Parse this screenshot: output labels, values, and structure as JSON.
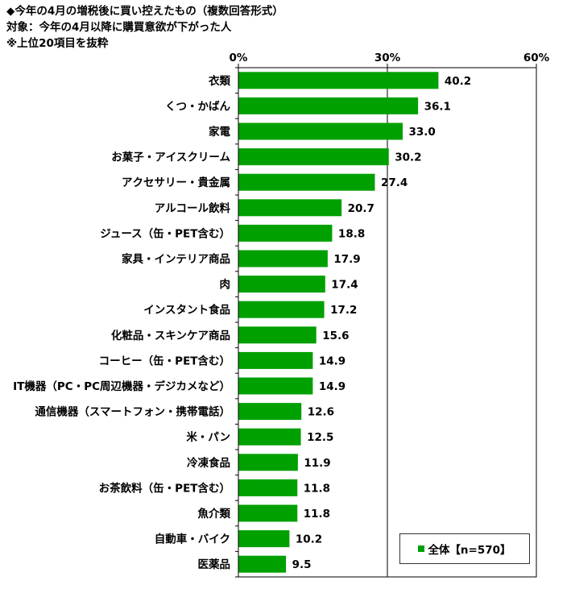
{
  "header": {
    "title": "◆今年の4月の増税後に買い控えたもの（複数回答形式）",
    "subtitle": "対象：今年の4月以降に購買意欲が下がった人",
    "note": "※上位20項目を抜粋"
  },
  "colors": {
    "bar": "#00A000",
    "axis": "#000000",
    "grid": "#000000"
  },
  "chart_data": {
    "type": "bar",
    "orientation": "horizontal",
    "categories": [
      "衣類",
      "くつ・かばん",
      "家電",
      "お菓子・アイスクリーム",
      "アクセサリー・貴金属",
      "アルコール飲料",
      "ジュース（缶・PET含む）",
      "家具・インテリア商品",
      "肉",
      "インスタント食品",
      "化粧品・スキンケア商品",
      "コーヒー（缶・PET含む）",
      "IT機器（PC・PC周辺機器・デジカメなど）",
      "通信機器（スマートフォン・携帯電話）",
      "米・パン",
      "冷凍食品",
      "お茶飲料（缶・PET含む）",
      "魚介類",
      "自動車・バイク",
      "医薬品"
    ],
    "series": [
      {
        "name": "全体【n=570】",
        "values": [
          40.2,
          36.1,
          33.0,
          30.2,
          27.4,
          20.7,
          18.8,
          17.9,
          17.4,
          17.2,
          15.6,
          14.9,
          14.9,
          12.6,
          12.5,
          11.9,
          11.8,
          11.8,
          10.2,
          9.5
        ]
      }
    ],
    "data_labels": [
      "40.2",
      "36.1",
      "33.0",
      "30.2",
      "27.4",
      "20.7",
      "18.8",
      "17.9",
      "17.4",
      "17.2",
      "15.6",
      "14.9",
      "14.9",
      "12.6",
      "12.5",
      "11.9",
      "11.8",
      "11.8",
      "10.2",
      "9.5"
    ],
    "xlim": [
      0,
      60
    ],
    "xticks": [
      0,
      30,
      60
    ],
    "xtick_labels": [
      "0%",
      "30%",
      "60%"
    ],
    "xlabel": "",
    "ylabel": "",
    "legend_position": "bottom-right",
    "grid": "vertical gridlines at 30%"
  }
}
